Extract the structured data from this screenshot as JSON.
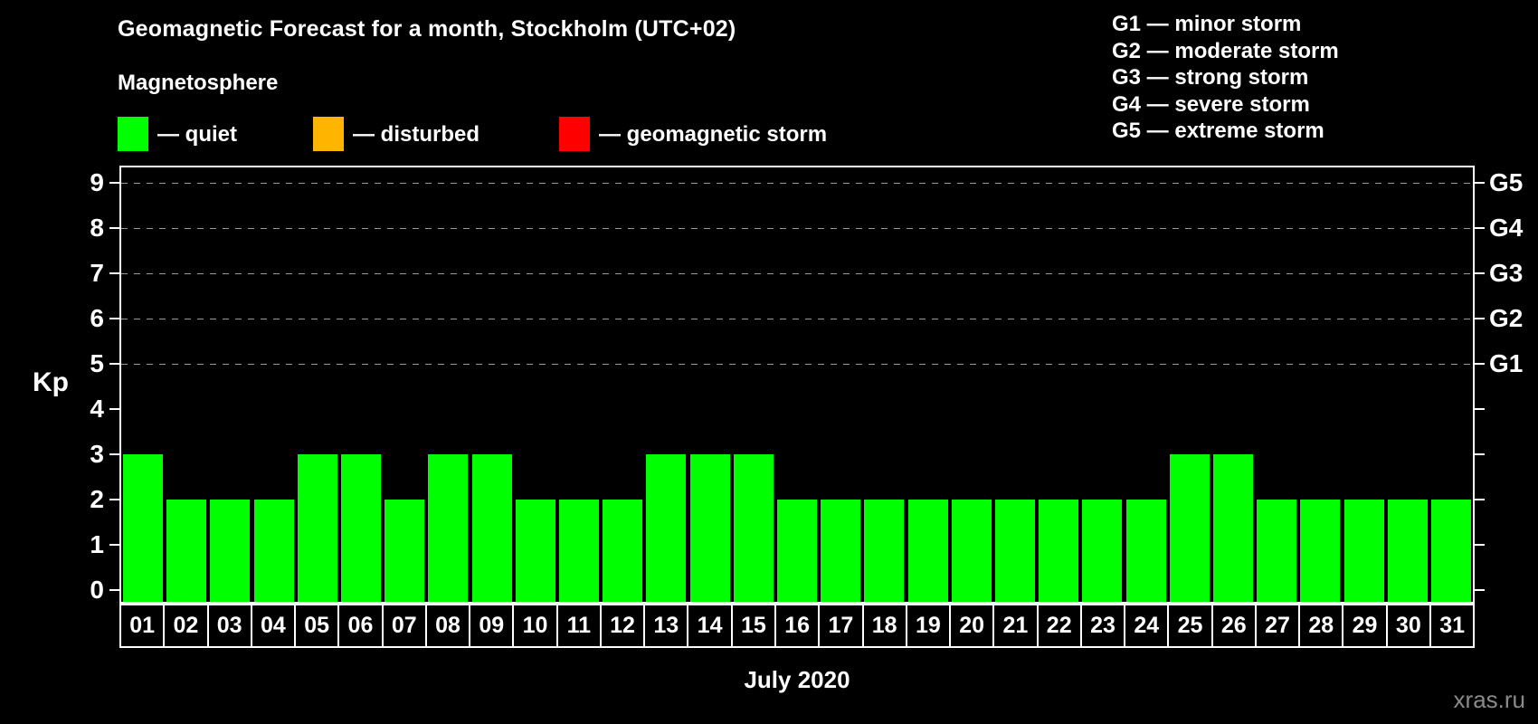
{
  "title": "Geomagnetic Forecast for a month, Stockholm (UTC+02)",
  "legend": {
    "title": "Magnetosphere",
    "items": [
      {
        "name": "quiet",
        "label": "— quiet",
        "color": "#00ff00"
      },
      {
        "name": "disturbed",
        "label": "— disturbed",
        "color": "#ffb400"
      },
      {
        "name": "geomagnetic-storm",
        "label": "— geomagnetic storm",
        "color": "#ff0000"
      }
    ]
  },
  "storm_scale_legend": [
    "G1 — minor storm",
    "G2 — moderate storm",
    "G3 — strong storm",
    "G4 — severe storm",
    "G5 — extreme storm"
  ],
  "chart_data": {
    "type": "bar",
    "title": "Geomagnetic Forecast for a month, Stockholm (UTC+02)",
    "categories": [
      "01",
      "02",
      "03",
      "04",
      "05",
      "06",
      "07",
      "08",
      "09",
      "10",
      "11",
      "12",
      "13",
      "14",
      "15",
      "16",
      "17",
      "18",
      "19",
      "20",
      "21",
      "22",
      "23",
      "24",
      "25",
      "26",
      "27",
      "28",
      "29",
      "30",
      "31"
    ],
    "values": [
      3,
      2,
      2,
      2,
      3,
      3,
      2,
      3,
      3,
      2,
      2,
      2,
      3,
      3,
      3,
      2,
      2,
      2,
      2,
      2,
      2,
      2,
      2,
      2,
      3,
      3,
      2,
      2,
      2,
      2,
      2
    ],
    "bar_color": "#00ff00",
    "xlabel": "July 2020",
    "ylabel": "Kp",
    "ylim": [
      0,
      9
    ],
    "yticks": [
      0,
      1,
      2,
      3,
      4,
      5,
      6,
      7,
      8,
      9
    ],
    "gridlines_at": [
      5,
      6,
      7,
      8,
      9
    ],
    "grid_style": "dashed",
    "legend_position": "top",
    "right_axis_labels": [
      {
        "label": "G1",
        "level": 5
      },
      {
        "label": "G2",
        "level": 6
      },
      {
        "label": "G3",
        "level": 7
      },
      {
        "label": "G4",
        "level": 8
      },
      {
        "label": "G5",
        "level": 9
      }
    ]
  },
  "watermark": "xras.ru",
  "colors": {
    "background": "#000000",
    "text": "#ffffff",
    "quiet": "#00ff00",
    "disturbed": "#ffb400",
    "storm": "#ff0000",
    "gridline": "#9a9a9a",
    "watermark": "#8a8a8a"
  }
}
